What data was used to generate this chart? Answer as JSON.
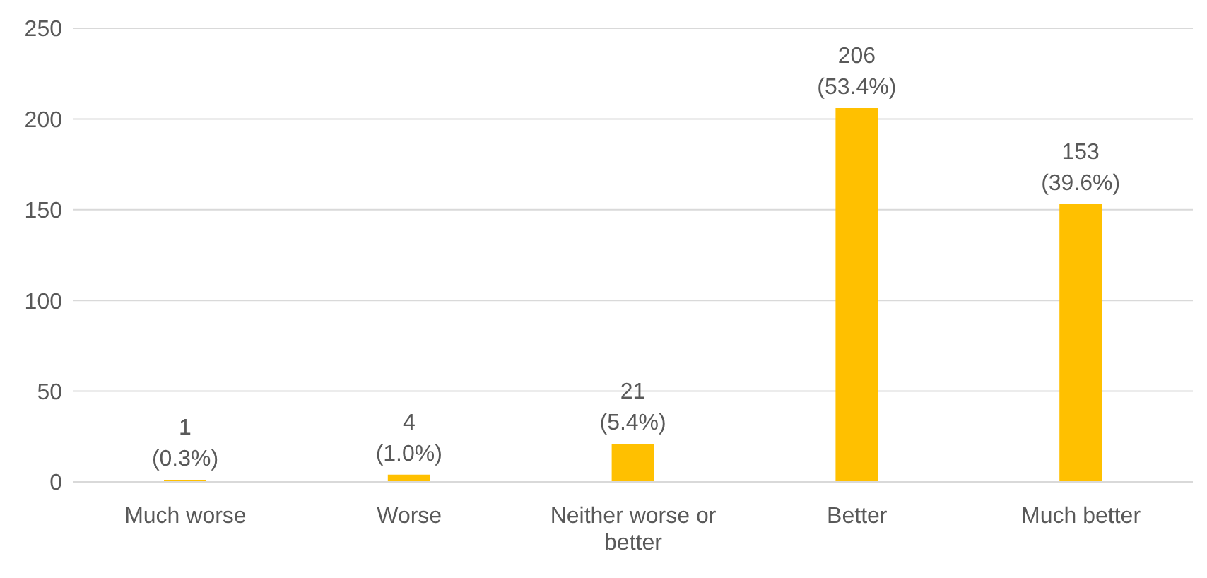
{
  "chart_data": {
    "type": "bar",
    "categories": [
      "Much worse",
      "Worse",
      "Neither worse or better",
      "Better",
      "Much better"
    ],
    "values": [
      1,
      4,
      21,
      206,
      153
    ],
    "value_labels": [
      "1\n(0.3%)",
      "4\n(1.0%)",
      "21\n(5.4%)",
      "206\n(53.4%)",
      "153\n(39.6%)"
    ],
    "color": "#ffc000",
    "ylim": [
      0,
      250
    ],
    "yticks": [
      0,
      50,
      100,
      150,
      200,
      250
    ],
    "grid": "y",
    "legend": false
  }
}
